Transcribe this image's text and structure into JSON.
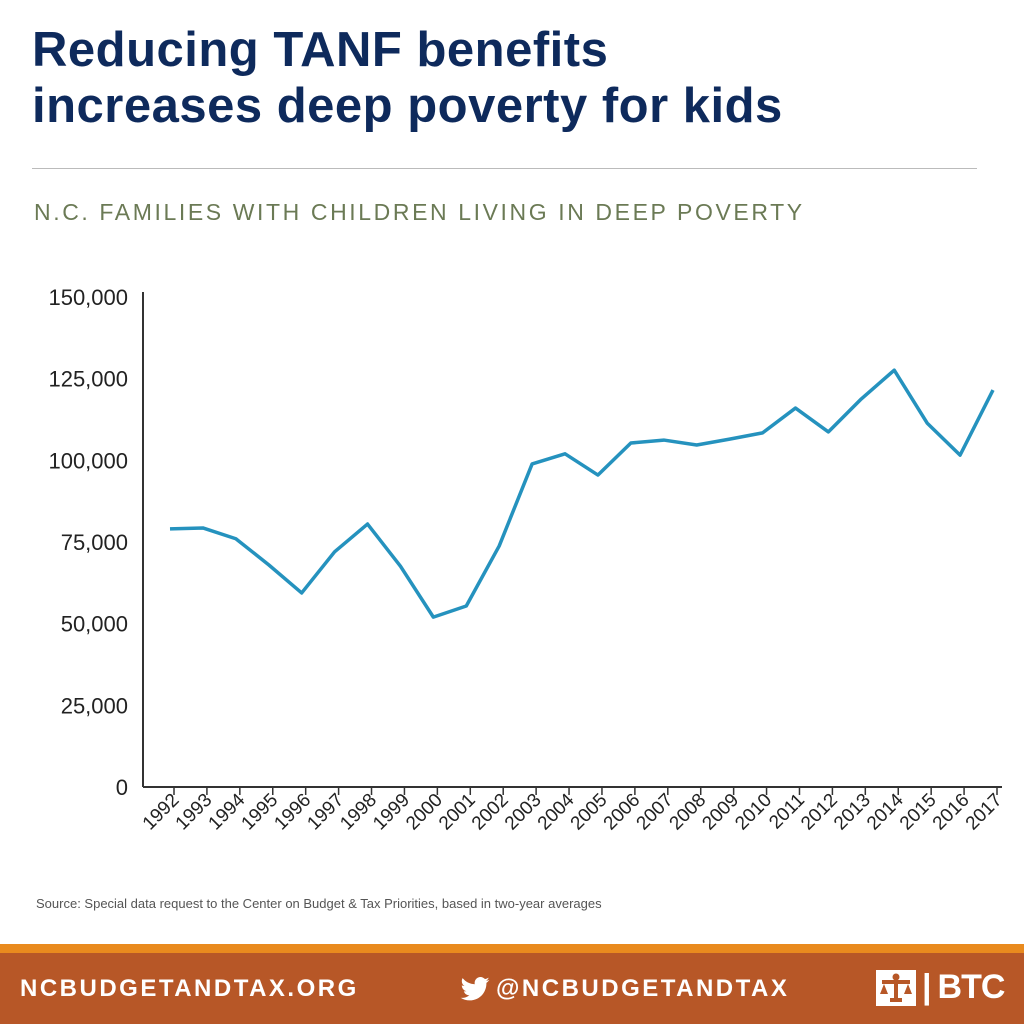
{
  "header": {
    "title_line1": "Reducing TANF benefits",
    "title_line2": "increases deep poverty for kids"
  },
  "chart_data": {
    "type": "line",
    "title": "N.C. FAMILIES WITH CHILDREN LIVING IN DEEP POVERTY",
    "xlabel": "",
    "ylabel": "",
    "ylim": [
      0,
      150000
    ],
    "yticks": [
      0,
      25000,
      50000,
      75000,
      100000,
      125000,
      150000
    ],
    "ytick_labels": [
      "0",
      "25,000",
      "50,000",
      "75,000",
      "100,000",
      "125,000",
      "150,000"
    ],
    "categories": [
      "1992",
      "1993",
      "1994",
      "1995",
      "1996",
      "1997",
      "1998",
      "1999",
      "2000",
      "2001",
      "2002",
      "2003",
      "2004",
      "2005",
      "2006",
      "2007",
      "2008",
      "2009",
      "2010",
      "2011",
      "2012",
      "2013",
      "2014",
      "2015",
      "2016",
      "2017"
    ],
    "values": [
      79000,
      79300,
      76000,
      68000,
      59400,
      72000,
      80500,
      67600,
      52000,
      55400,
      73800,
      98900,
      102000,
      95500,
      105300,
      106200,
      104700,
      106500,
      108400,
      116000,
      108700,
      118800,
      127600,
      111400,
      101600,
      121500
    ],
    "color": "#2592be",
    "grid": false,
    "legend": "none"
  },
  "source": "Source: Special data request to the Center on Budget & Tax Priorities, based in two-year averages",
  "footer": {
    "website": "NCBUDGETANDTAX.ORG",
    "twitter": "@NCBUDGETANDTAX",
    "logo_text": "BTC",
    "twitter_icon": "twitter-bird-icon"
  },
  "colors": {
    "title": "#0e2a5c",
    "subtitle": "#6b7a55",
    "footer": "#b75727",
    "accent_bar": "#e98a1e"
  }
}
